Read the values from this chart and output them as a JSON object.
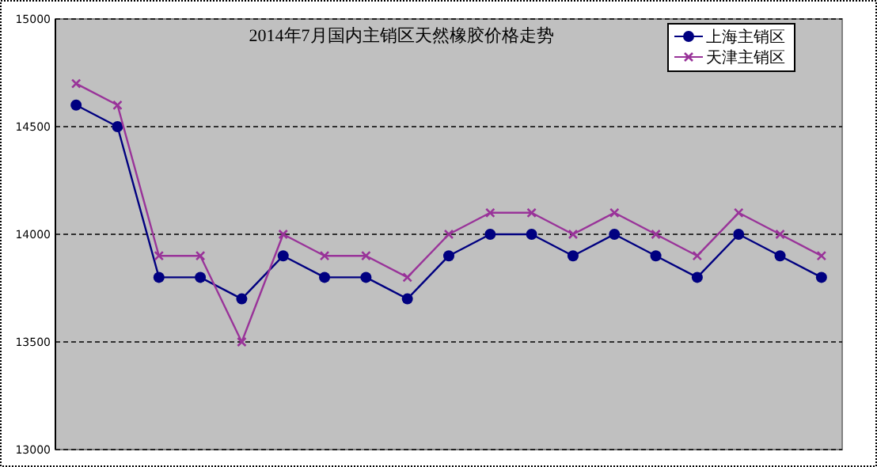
{
  "chart_data": {
    "type": "line",
    "title": "2014年7月国内主销区天然橡胶价格走势",
    "categories": [
      null,
      null,
      null,
      null,
      null,
      null,
      null,
      null,
      null,
      null,
      null,
      null,
      null,
      null,
      null,
      null,
      null,
      null,
      null
    ],
    "series": [
      {
        "name": "上海主销区",
        "color": "#000080",
        "marker": "circle",
        "values": [
          14600,
          14500,
          13800,
          13800,
          13700,
          13900,
          13800,
          13800,
          13700,
          13900,
          14000,
          14000,
          13900,
          14000,
          13900,
          13800,
          14000,
          13900,
          13800
        ]
      },
      {
        "name": "天津主销区",
        "color": "#993399",
        "marker": "cross",
        "values": [
          14700,
          14600,
          13900,
          13900,
          13500,
          14000,
          13900,
          13900,
          13800,
          14000,
          14100,
          14100,
          14000,
          14100,
          14000,
          13900,
          14100,
          14000,
          13900
        ]
      }
    ],
    "ylim": [
      13000,
      15000
    ],
    "yticks": [
      13000,
      13500,
      14000,
      14500,
      15000
    ],
    "grid": "y",
    "legend": "top right"
  }
}
